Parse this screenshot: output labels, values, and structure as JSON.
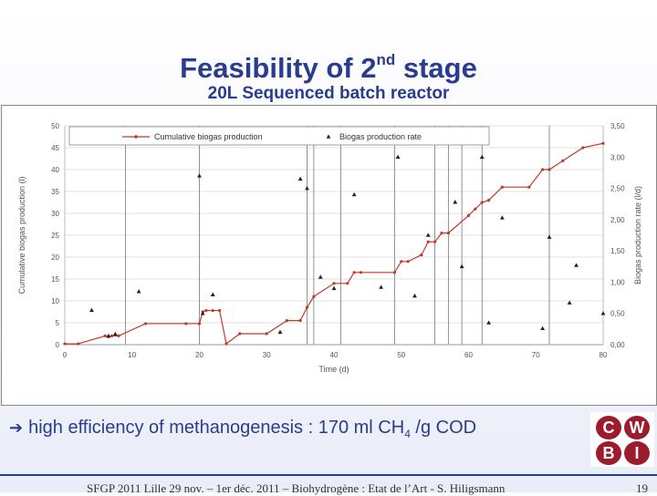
{
  "slide": {
    "title_main": "Feasibility of 2",
    "title_sup": "nd",
    "title_end": " stage",
    "subtitle": "20L Sequenced batch reactor",
    "bullet_arrow": "➔",
    "bullet_text": "high efficiency of methanogenesis  : 170 ml CH",
    "bullet_sub": "4",
    "bullet_end": " /g COD",
    "footer": "SFGP 2011 Lille 29 nov. – 1er déc. 2011 – Biohydrogène : Etat de l’Art - S. Hiligsmann",
    "page_number": "19",
    "logo_letters": [
      "C",
      "W",
      "B",
      "I"
    ]
  },
  "colors": {
    "title": "#2a3c8f",
    "line_series": "#c0392b",
    "marker_series": "#222222",
    "logo": "#9c1b2d"
  },
  "chart_data": {
    "type": "line",
    "xlabel": "Time (d)",
    "ylabel_left": "Cumulative biogas production (l)",
    "ylabel_right": "Biogas production rate (l/d)",
    "xlim": [
      0,
      80
    ],
    "ylim_left": [
      0,
      50
    ],
    "ylim_right": [
      0,
      3.5
    ],
    "x_ticks": [
      0,
      10,
      20,
      30,
      40,
      50,
      60,
      70,
      80
    ],
    "y_ticks_left": [
      0,
      5,
      10,
      15,
      20,
      25,
      30,
      35,
      40,
      45,
      50
    ],
    "y_ticks_right": [
      "0,00",
      "0,50",
      "1,00",
      "1,50",
      "2,00",
      "2,50",
      "3,00",
      "3,50"
    ],
    "y_ticks_right_values": [
      0,
      0.5,
      1,
      1.5,
      2,
      2.5,
      3,
      3.5
    ],
    "legend_position": "top",
    "vertical_lines_x": [
      9,
      20,
      36,
      37,
      41,
      49,
      55,
      57,
      59,
      62,
      72
    ],
    "series": [
      {
        "name": "Cumulative biogas production",
        "axis": "left",
        "x": [
          0,
          2,
          6,
          6.5,
          7,
          8,
          12,
          18,
          20,
          20.5,
          21,
          22,
          23,
          24,
          26,
          30,
          33,
          35,
          36,
          37,
          40,
          42,
          43,
          44,
          49,
          50,
          51,
          53,
          54,
          55,
          56,
          57,
          60,
          61,
          62,
          63,
          65,
          69,
          71,
          72,
          74,
          77,
          80
        ],
        "y": [
          0.2,
          0.2,
          2,
          1.8,
          2,
          2,
          4.8,
          4.8,
          4.8,
          7.5,
          7.8,
          7.8,
          7.8,
          0.2,
          2.5,
          2.5,
          5.5,
          5.5,
          8.5,
          11,
          14,
          14,
          16.5,
          16.5,
          16.5,
          19,
          19,
          20.5,
          23.5,
          23.5,
          25.5,
          25.5,
          29.5,
          31,
          32.5,
          33,
          36,
          36,
          40,
          40,
          42,
          45,
          46
        ]
      },
      {
        "name": "Biogas production rate",
        "axis": "right",
        "x": [
          4,
          6.5,
          7.5,
          11,
          20,
          20.5,
          22,
          32,
          35,
          36,
          38,
          40,
          43,
          47,
          49.5,
          52,
          54,
          58,
          59,
          62,
          63,
          65,
          71,
          72,
          75,
          76,
          80
        ],
        "y": [
          0.55,
          0.14,
          0.17,
          0.85,
          2.7,
          0.5,
          0.8,
          0.2,
          2.65,
          2.5,
          1.08,
          0.9,
          2.4,
          0.92,
          3.0,
          0.78,
          1.75,
          2.28,
          1.25,
          3.0,
          0.35,
          2.03,
          0.26,
          1.72,
          0.67,
          1.27,
          0.5
        ]
      }
    ]
  }
}
